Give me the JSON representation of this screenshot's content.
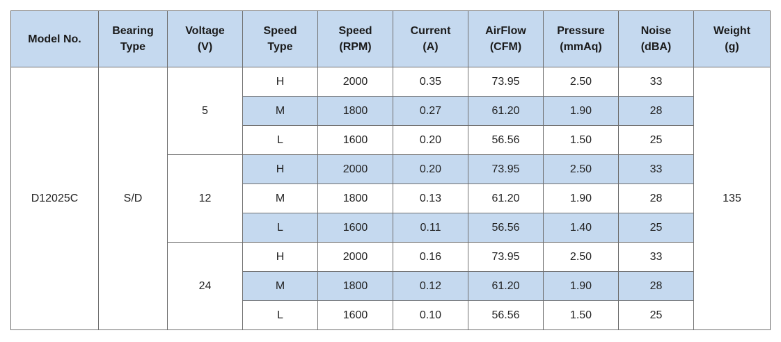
{
  "colors": {
    "header_bg": "#c5d9ef",
    "stripe_bg": "#c5d9ef",
    "border": "#6f6f6f"
  },
  "header": {
    "model_no": "Model No.",
    "bearing_type": [
      "Bearing",
      "Type"
    ],
    "voltage": [
      "Voltage",
      "(V)"
    ],
    "speed_type": [
      "Speed",
      "Type"
    ],
    "speed_rpm": [
      "Speed",
      "(RPM)"
    ],
    "current": [
      "Current",
      "(A)"
    ],
    "airflow": [
      "AirFlow",
      "(CFM)"
    ],
    "pressure": [
      "Pressure",
      "(mmAq)"
    ],
    "noise": [
      "Noise",
      "(dBA)"
    ],
    "weight": [
      "Weight",
      "(g)"
    ]
  },
  "model": "D12025C",
  "bearing": "S/D",
  "weight": "135",
  "groups": [
    {
      "voltage": "5",
      "rows": [
        {
          "speed_type": "H",
          "speed": "2000",
          "current": "0.35",
          "airflow": "73.95",
          "pressure": "2.50",
          "noise": "33"
        },
        {
          "speed_type": "M",
          "speed": "1800",
          "current": "0.27",
          "airflow": "61.20",
          "pressure": "1.90",
          "noise": "28"
        },
        {
          "speed_type": "L",
          "speed": "1600",
          "current": "0.20",
          "airflow": "56.56",
          "pressure": "1.50",
          "noise": "25"
        }
      ]
    },
    {
      "voltage": "12",
      "rows": [
        {
          "speed_type": "H",
          "speed": "2000",
          "current": "0.20",
          "airflow": "73.95",
          "pressure": "2.50",
          "noise": "33"
        },
        {
          "speed_type": "M",
          "speed": "1800",
          "current": "0.13",
          "airflow": "61.20",
          "pressure": "1.90",
          "noise": "28"
        },
        {
          "speed_type": "L",
          "speed": "1600",
          "current": "0.11",
          "airflow": "56.56",
          "pressure": "1.40",
          "noise": "25"
        }
      ]
    },
    {
      "voltage": "24",
      "rows": [
        {
          "speed_type": "H",
          "speed": "2000",
          "current": "0.16",
          "airflow": "73.95",
          "pressure": "2.50",
          "noise": "33"
        },
        {
          "speed_type": "M",
          "speed": "1800",
          "current": "0.12",
          "airflow": "61.20",
          "pressure": "1.90",
          "noise": "28"
        },
        {
          "speed_type": "L",
          "speed": "1600",
          "current": "0.10",
          "airflow": "56.56",
          "pressure": "1.50",
          "noise": "25"
        }
      ]
    }
  ]
}
